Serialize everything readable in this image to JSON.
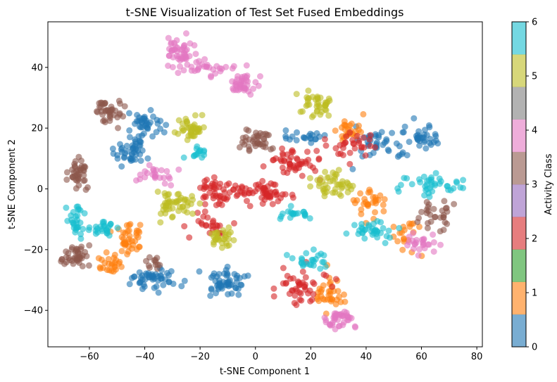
{
  "chart_data": {
    "type": "scatter",
    "title": "t-SNE Visualization of Test Set Fused Embeddings",
    "xlabel": "t-SNE Component 1",
    "ylabel": "t-SNE Component 2",
    "xlim": [
      -75,
      82
    ],
    "ylim": [
      -52,
      55
    ],
    "xticks": [
      -60,
      -40,
      -20,
      0,
      20,
      40,
      60,
      80
    ],
    "yticks": [
      -40,
      -20,
      0,
      20,
      40
    ],
    "grid": false,
    "colorbar": {
      "label": "Activity Class",
      "range": [
        0,
        6
      ],
      "ticks": [
        0,
        1,
        2,
        3,
        4,
        5,
        6
      ],
      "class_colors": [
        "#1f77b4",
        "#ff7f0e",
        "#2ca02c",
        "#d62728",
        "#9467bd",
        "#8c564b",
        "#e377c2",
        "#7f7f7f",
        "#bcbd22",
        "#17becf"
      ]
    },
    "clusters": [
      {
        "class": 0,
        "x": -45,
        "y": 12,
        "sx": 3.0,
        "sy": 3.0,
        "n": 45
      },
      {
        "class": 0,
        "x": -40,
        "y": 21,
        "sx": 3.5,
        "sy": 2.0,
        "n": 40
      },
      {
        "class": 0,
        "x": -36,
        "y": -30,
        "sx": 4.0,
        "sy": 2.0,
        "n": 50
      },
      {
        "class": 0,
        "x": -10,
        "y": -31,
        "sx": 3.5,
        "sy": 2.0,
        "n": 55
      },
      {
        "class": 0,
        "x": 17,
        "y": 17,
        "sx": 3.5,
        "sy": 1.0,
        "n": 20
      },
      {
        "class": 0,
        "x": 45,
        "y": 14,
        "sx": 5.0,
        "sy": 2.5,
        "n": 40
      },
      {
        "class": 0,
        "x": 60,
        "y": 17,
        "sx": 3.0,
        "sy": 2.0,
        "n": 35
      },
      {
        "class": 1,
        "x": -46,
        "y": -17,
        "sx": 2.0,
        "sy": 2.5,
        "n": 40
      },
      {
        "class": 1,
        "x": -53,
        "y": -24,
        "sx": 2.5,
        "sy": 1.5,
        "n": 25
      },
      {
        "class": 1,
        "x": 27,
        "y": -35,
        "sx": 3.0,
        "sy": 3.0,
        "n": 35
      },
      {
        "class": 1,
        "x": 34,
        "y": 19,
        "sx": 2.0,
        "sy": 2.0,
        "n": 25
      },
      {
        "class": 1,
        "x": 42,
        "y": -5,
        "sx": 3.0,
        "sy": 2.5,
        "n": 30
      },
      {
        "class": 1,
        "x": 55,
        "y": -15,
        "sx": 3.0,
        "sy": 3.0,
        "n": 20
      },
      {
        "class": 3,
        "x": -14,
        "y": -1,
        "sx": 4.5,
        "sy": 2.5,
        "n": 50
      },
      {
        "class": 3,
        "x": 3,
        "y": -1,
        "sx": 5.0,
        "sy": 2.0,
        "n": 55
      },
      {
        "class": 3,
        "x": 14,
        "y": 9,
        "sx": 5.0,
        "sy": 2.5,
        "n": 50
      },
      {
        "class": 3,
        "x": 15,
        "y": -32,
        "sx": 4.5,
        "sy": 2.5,
        "n": 45
      },
      {
        "class": 3,
        "x": 35,
        "y": 14,
        "sx": 4.0,
        "sy": 2.0,
        "n": 30
      },
      {
        "class": 3,
        "x": -17,
        "y": -12,
        "sx": 3.0,
        "sy": 2.0,
        "n": 25
      },
      {
        "class": 5,
        "x": -53,
        "y": 25,
        "sx": 2.5,
        "sy": 2.0,
        "n": 40
      },
      {
        "class": 5,
        "x": -64,
        "y": 5,
        "sx": 2.0,
        "sy": 2.5,
        "n": 40
      },
      {
        "class": 5,
        "x": -65,
        "y": -22,
        "sx": 2.0,
        "sy": 2.0,
        "n": 40
      },
      {
        "class": 5,
        "x": 1,
        "y": 16,
        "sx": 3.0,
        "sy": 2.0,
        "n": 40
      },
      {
        "class": 5,
        "x": 67,
        "y": -9,
        "sx": 3.0,
        "sy": 3.0,
        "n": 30
      },
      {
        "class": 5,
        "x": -37,
        "y": -24,
        "sx": 1.5,
        "sy": 1.0,
        "n": 12
      },
      {
        "class": 6,
        "x": -27,
        "y": 46,
        "sx": 2.5,
        "sy": 2.5,
        "n": 45
      },
      {
        "class": 6,
        "x": -4,
        "y": 35,
        "sx": 3.0,
        "sy": 2.0,
        "n": 40
      },
      {
        "class": 6,
        "x": -17,
        "y": 40,
        "sx": 6.0,
        "sy": 1.5,
        "n": 30
      },
      {
        "class": 6,
        "x": -37,
        "y": 5,
        "sx": 3.0,
        "sy": 1.5,
        "n": 25
      },
      {
        "class": 6,
        "x": 30,
        "y": -43,
        "sx": 2.5,
        "sy": 2.0,
        "n": 40
      },
      {
        "class": 6,
        "x": 60,
        "y": -18,
        "sx": 4.0,
        "sy": 1.5,
        "n": 25
      },
      {
        "class": 8,
        "x": -23,
        "y": 20,
        "sx": 2.5,
        "sy": 2.0,
        "n": 40
      },
      {
        "class": 8,
        "x": -30,
        "y": -5,
        "sx": 3.5,
        "sy": 2.5,
        "n": 50
      },
      {
        "class": 8,
        "x": 22,
        "y": 28,
        "sx": 3.0,
        "sy": 2.0,
        "n": 40
      },
      {
        "class": 8,
        "x": 28,
        "y": 2,
        "sx": 3.5,
        "sy": 2.0,
        "n": 45
      },
      {
        "class": 8,
        "x": -12,
        "y": -16,
        "sx": 2.5,
        "sy": 2.0,
        "n": 30
      },
      {
        "class": 9,
        "x": -65,
        "y": -10,
        "sx": 1.5,
        "sy": 3.0,
        "n": 30
      },
      {
        "class": 9,
        "x": -55,
        "y": -13,
        "sx": 2.5,
        "sy": 1.5,
        "n": 25
      },
      {
        "class": 9,
        "x": 15,
        "y": -8,
        "sx": 3.0,
        "sy": 1.0,
        "n": 20
      },
      {
        "class": 9,
        "x": 42,
        "y": -14,
        "sx": 4.0,
        "sy": 2.0,
        "n": 35
      },
      {
        "class": 9,
        "x": 64,
        "y": 1,
        "sx": 6.0,
        "sy": 2.0,
        "n": 40
      },
      {
        "class": 9,
        "x": 20,
        "y": -24,
        "sx": 4.0,
        "sy": 2.0,
        "n": 25
      },
      {
        "class": 9,
        "x": -20,
        "y": 12,
        "sx": 2.0,
        "sy": 1.5,
        "n": 15
      }
    ]
  }
}
